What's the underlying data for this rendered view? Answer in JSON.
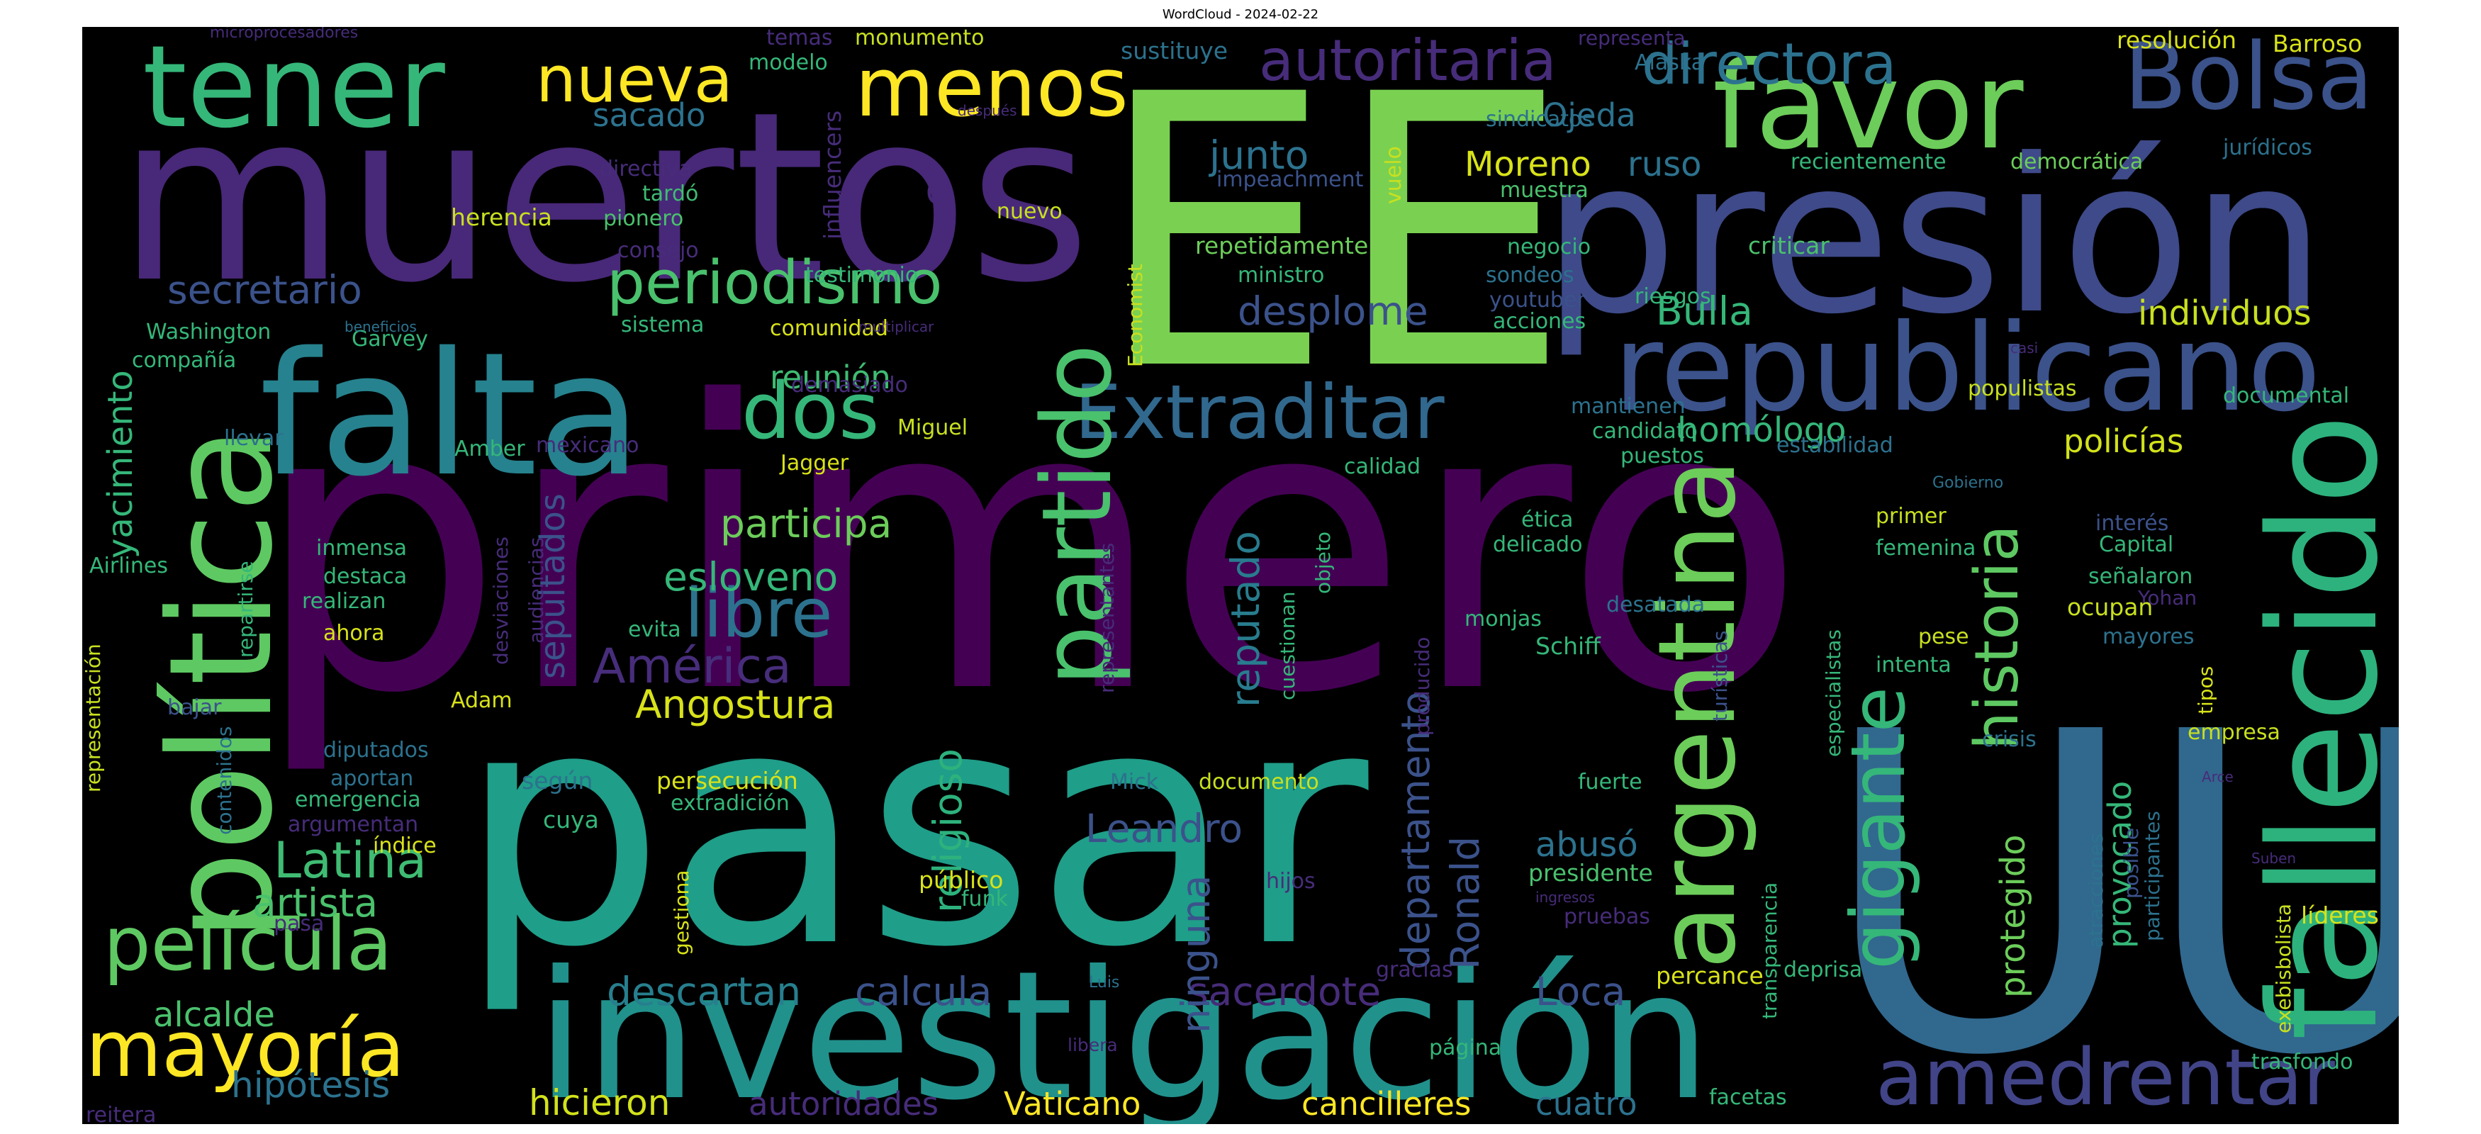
{
  "title": "WordCloud - 2024-02-22",
  "words": [
    {
      "text": "primero",
      "color": "#440154"
    },
    {
      "text": "pasar",
      "color": "#1f9e89"
    },
    {
      "text": "muertos",
      "color": "#482878"
    },
    {
      "text": "EE",
      "color": "#7ad151"
    },
    {
      "text": "UU",
      "color": "#31688e"
    },
    {
      "text": "presión",
      "color": "#3e4a89"
    },
    {
      "text": "investigación",
      "color": "#21918c"
    },
    {
      "text": "falta",
      "color": "#26828e"
    },
    {
      "text": "republicano",
      "color": "#3b528b"
    },
    {
      "text": "fallecido",
      "color": "#2db27d"
    },
    {
      "text": "política",
      "color": "#5ec962"
    },
    {
      "text": "tener",
      "color": "#35b779"
    },
    {
      "text": "favor",
      "color": "#6ccd5a"
    },
    {
      "text": "menos",
      "color": "#fde725"
    },
    {
      "text": "Bolsa",
      "color": "#3b528b"
    },
    {
      "text": "argentina",
      "color": "#6ccd5a"
    },
    {
      "text": "Extraditar",
      "color": "#31688e"
    },
    {
      "text": "partido",
      "color": "#4ac16d"
    },
    {
      "text": "amedrentar",
      "color": "#414487"
    },
    {
      "text": "mayoría",
      "color": "#fde725"
    },
    {
      "text": "película",
      "color": "#5ec962"
    },
    {
      "text": "gigante",
      "color": "#35b779"
    },
    {
      "text": "historia",
      "color": "#5ec962"
    },
    {
      "text": "periodismo",
      "color": "#4ac16d"
    },
    {
      "text": "dos",
      "color": "#35b779"
    },
    {
      "text": "libre",
      "color": "#2c728e"
    },
    {
      "text": "nueva",
      "color": "#fde725"
    },
    {
      "text": "directora",
      "color": "#2c728e"
    },
    {
      "text": "autoritaria",
      "color": "#472c7a"
    },
    {
      "text": "Latina",
      "color": "#3fbc73"
    },
    {
      "text": "América",
      "color": "#472d7b"
    },
    {
      "text": "secretario",
      "color": "#3b528b"
    },
    {
      "text": "departamento",
      "color": "#3b528b"
    },
    {
      "text": "participa",
      "color": "#6ccd5a"
    },
    {
      "text": "esloveno",
      "color": "#35b779"
    },
    {
      "text": "Angostura",
      "color": "#d8e219"
    },
    {
      "text": "reputado",
      "color": "#287c8e"
    },
    {
      "text": "religioso",
      "color": "#2db27d"
    },
    {
      "text": "sepultados",
      "color": "#3b528b"
    },
    {
      "text": "yacimiento",
      "color": "#35b779"
    },
    {
      "text": "artista",
      "color": "#4ac16d"
    },
    {
      "text": "Leandro",
      "color": "#3b528b"
    },
    {
      "text": "descartan",
      "color": "#277f8e"
    },
    {
      "text": "calcula",
      "color": "#3b528b"
    },
    {
      "text": "sacerdote",
      "color": "#472c7a"
    },
    {
      "text": "Loca",
      "color": "#3b528b"
    },
    {
      "text": "Ronald",
      "color": "#3b528b"
    },
    {
      "text": "ninguna",
      "color": "#3b528b"
    },
    {
      "text": "abusó",
      "color": "#2c728e"
    },
    {
      "text": "protegido",
      "color": "#6ccd5a"
    },
    {
      "text": "provocado",
      "color": "#35b779"
    },
    {
      "text": "policías",
      "color": "#d2e21b"
    },
    {
      "text": "individuos",
      "color": "#c8e020"
    },
    {
      "text": "homólogo",
      "color": "#35b779"
    },
    {
      "text": "Bulla",
      "color": "#35b779"
    },
    {
      "text": "desplome",
      "color": "#3b528b"
    },
    {
      "text": "reunión",
      "color": "#3fbc73"
    },
    {
      "text": "junto",
      "color": "#2c728e"
    },
    {
      "text": "Moreno",
      "color": "#d8e219"
    },
    {
      "text": "ruso",
      "color": "#2c728e"
    },
    {
      "text": "Ojeda",
      "color": "#2c728e"
    },
    {
      "text": "sacado",
      "color": "#2c728e"
    },
    {
      "text": "hicieron",
      "color": "#d2e21b"
    },
    {
      "text": "autoridades",
      "color": "#472c7a"
    },
    {
      "text": "Vaticano",
      "color": "#fde725"
    },
    {
      "text": "cancilleres",
      "color": "#fde725"
    },
    {
      "text": "cuatro",
      "color": "#2c728e"
    },
    {
      "text": "hipótesis",
      "color": "#2c728e"
    },
    {
      "text": "alcalde",
      "color": "#4ac16d"
    },
    {
      "text": "G",
      "color": "#482878"
    },
    {
      "text": "Washington",
      "color": "#35b779"
    },
    {
      "text": "compañía",
      "color": "#35b779"
    },
    {
      "text": "herencia",
      "color": "#c8e020"
    },
    {
      "text": "directiva",
      "color": "#472c7a"
    },
    {
      "text": "tardó",
      "color": "#3fbc73"
    },
    {
      "text": "pionero",
      "color": "#4ac16d"
    },
    {
      "text": "nuevo",
      "color": "#c8e020"
    },
    {
      "text": "consejo",
      "color": "#472c7a"
    },
    {
      "text": "testimonio",
      "color": "#35b779"
    },
    {
      "text": "Garvey",
      "color": "#35b779"
    },
    {
      "text": "sistema",
      "color": "#35b779"
    },
    {
      "text": "comunidad",
      "color": "#d8e219"
    },
    {
      "text": "multiplicar",
      "color": "#472c7a"
    },
    {
      "text": "beneficios",
      "color": "#2c728e"
    },
    {
      "text": "demasiado",
      "color": "#472c7a"
    },
    {
      "text": "Miguel",
      "color": "#c8e020"
    },
    {
      "text": "llevar",
      "color": "#2c728e"
    },
    {
      "text": "mexicano",
      "color": "#472c7a"
    },
    {
      "text": "Amber",
      "color": "#35b779"
    },
    {
      "text": "Jagger",
      "color": "#d8e219"
    },
    {
      "text": "microprocesadores",
      "color": "#472c7a"
    },
    {
      "text": "temas",
      "color": "#472c7a"
    },
    {
      "text": "monumento",
      "color": "#c8e020"
    },
    {
      "text": "modelo",
      "color": "#35b779"
    },
    {
      "text": "sustituye",
      "color": "#2c728e"
    },
    {
      "text": "representa",
      "color": "#472c7a"
    },
    {
      "text": "Alaska",
      "color": "#2c728e"
    },
    {
      "text": "resolución",
      "color": "#d8e219"
    },
    {
      "text": "Barroso",
      "color": "#d8e219"
    },
    {
      "text": "después",
      "color": "#472c7a"
    },
    {
      "text": "influencers",
      "color": "#472c7a"
    },
    {
      "text": "vuelo",
      "color": "#c8e020"
    },
    {
      "text": "impeachment",
      "color": "#3b528b"
    },
    {
      "text": "sindicatos",
      "color": "#2c728e"
    },
    {
      "text": "muestra",
      "color": "#4ac16d"
    },
    {
      "text": "recientemente",
      "color": "#35b779"
    },
    {
      "text": "democrática",
      "color": "#6ccd5a"
    },
    {
      "text": "jurídicos",
      "color": "#2c728e"
    },
    {
      "text": "criticar",
      "color": "#4ac16d"
    },
    {
      "text": "negocio",
      "color": "#35b779"
    },
    {
      "text": "repetidamente",
      "color": "#6ccd5a"
    },
    {
      "text": "ministro",
      "color": "#35b779"
    },
    {
      "text": "sondeos",
      "color": "#2c728e"
    },
    {
      "text": "youtuber",
      "color": "#3b528b"
    },
    {
      "text": "riesgos",
      "color": "#35b779"
    },
    {
      "text": "acciones",
      "color": "#35b779"
    },
    {
      "text": "Economist",
      "color": "#c8e020"
    },
    {
      "text": "casi",
      "color": "#472c7a"
    },
    {
      "text": "populistas",
      "color": "#c8e020"
    },
    {
      "text": "documental",
      "color": "#35b779"
    },
    {
      "text": "mantienen",
      "color": "#2c728e"
    },
    {
      "text": "candidato",
      "color": "#35b779"
    },
    {
      "text": "estabilidad",
      "color": "#2c728e"
    },
    {
      "text": "puestos",
      "color": "#35b779"
    },
    {
      "text": "Gobierno",
      "color": "#2c728e"
    },
    {
      "text": "calidad",
      "color": "#35b779"
    },
    {
      "text": "representantes",
      "color": "#472c7a"
    },
    {
      "text": "objeto",
      "color": "#35b779"
    },
    {
      "text": "ética",
      "color": "#35b779"
    },
    {
      "text": "delicado",
      "color": "#35b779"
    },
    {
      "text": "primer",
      "color": "#c8e020"
    },
    {
      "text": "interés",
      "color": "#3b528b"
    },
    {
      "text": "Capital",
      "color": "#35b779"
    },
    {
      "text": "femenina",
      "color": "#35b779"
    },
    {
      "text": "señalaron",
      "color": "#35b779"
    },
    {
      "text": "Yohan",
      "color": "#472c7a"
    },
    {
      "text": "ocupan",
      "color": "#c8e020"
    },
    {
      "text": "mayores",
      "color": "#2c728e"
    },
    {
      "text": "inmensa",
      "color": "#35b779"
    },
    {
      "text": "destaca",
      "color": "#35b779"
    },
    {
      "text": "realizan",
      "color": "#35b779"
    },
    {
      "text": "Airlines",
      "color": "#35b779"
    },
    {
      "text": "ahora",
      "color": "#d8e219"
    },
    {
      "text": "evita",
      "color": "#35b779"
    },
    {
      "text": "desviaciones",
      "color": "#472c7a"
    },
    {
      "text": "audiencias",
      "color": "#472c7a"
    },
    {
      "text": "cuestionan",
      "color": "#35b779"
    },
    {
      "text": "monjas",
      "color": "#35b779"
    },
    {
      "text": "desatada",
      "color": "#2c728e"
    },
    {
      "text": "Schiff",
      "color": "#35b779"
    },
    {
      "text": "producido",
      "color": "#472c7a"
    },
    {
      "text": "turísticas",
      "color": "#3b528b"
    },
    {
      "text": "especialistas",
      "color": "#35b779"
    },
    {
      "text": "pese",
      "color": "#c8e020"
    },
    {
      "text": "intenta",
      "color": "#35b779"
    },
    {
      "text": "tipos",
      "color": "#d8e219"
    },
    {
      "text": "repartirse",
      "color": "#35b779"
    },
    {
      "text": "representación",
      "color": "#c8e020"
    },
    {
      "text": "contenidos",
      "color": "#2c728e"
    },
    {
      "text": "bajar",
      "color": "#3b528b"
    },
    {
      "text": "Adam",
      "color": "#d8e219"
    },
    {
      "text": "diputados",
      "color": "#2c728e"
    },
    {
      "text": "aportan",
      "color": "#2c728e"
    },
    {
      "text": "emergencia",
      "color": "#35b779"
    },
    {
      "text": "argumentan",
      "color": "#472c7a"
    },
    {
      "text": "índice",
      "color": "#d8e219"
    },
    {
      "text": "según",
      "color": "#2c728e"
    },
    {
      "text": "persecución",
      "color": "#d8e219"
    },
    {
      "text": "extradición",
      "color": "#35b779"
    },
    {
      "text": "cuya",
      "color": "#35b779"
    },
    {
      "text": "Mick",
      "color": "#2c728e"
    },
    {
      "text": "documento",
      "color": "#c8e020"
    },
    {
      "text": "fuerte",
      "color": "#35b779"
    },
    {
      "text": "crisis",
      "color": "#2c728e"
    },
    {
      "text": "empresa",
      "color": "#c8e020"
    },
    {
      "text": "Arce",
      "color": "#472c7a"
    },
    {
      "text": "transparencia",
      "color": "#35b779"
    },
    {
      "text": "atracciones",
      "color": "#2c728e"
    },
    {
      "text": "posible",
      "color": "#3b528b"
    },
    {
      "text": "participantes",
      "color": "#2c728e"
    },
    {
      "text": "presidente",
      "color": "#4ac16d"
    },
    {
      "text": "ingresos",
      "color": "#472c7a"
    },
    {
      "text": "pruebas",
      "color": "#472c7a"
    },
    {
      "text": "hijos",
      "color": "#472c7a"
    },
    {
      "text": "público",
      "color": "#d8e219"
    },
    {
      "text": "funk",
      "color": "#35b779"
    },
    {
      "text": "gestiona",
      "color": "#d8e219"
    },
    {
      "text": "pasa",
      "color": "#472c7a"
    },
    {
      "text": "Suben",
      "color": "#472c7a"
    },
    {
      "text": "líderes",
      "color": "#d8e219"
    },
    {
      "text": "exebisbolista",
      "color": "#c8e020"
    },
    {
      "text": "gracias",
      "color": "#472c7a"
    },
    {
      "text": "deprisa",
      "color": "#35b779"
    },
    {
      "text": "percance",
      "color": "#d8e219"
    },
    {
      "text": "Luis",
      "color": "#2c728e"
    },
    {
      "text": "libera",
      "color": "#472c7a"
    },
    {
      "text": "página",
      "color": "#35b779"
    },
    {
      "text": "facetas",
      "color": "#35b779"
    },
    {
      "text": "trasfondo",
      "color": "#35b779"
    },
    {
      "text": "reitera",
      "color": "#472c7a"
    }
  ]
}
